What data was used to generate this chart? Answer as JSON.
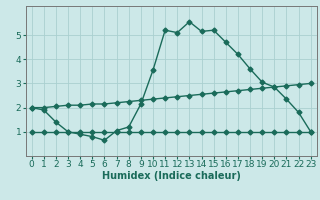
{
  "xlabel": "Humidex (Indice chaleur)",
  "background_color": "#cce8e8",
  "grid_color": "#aad0d0",
  "line_color": "#1a6b5a",
  "xlim": [
    -0.5,
    23.5
  ],
  "ylim": [
    0,
    6.2
  ],
  "xticks": [
    0,
    1,
    2,
    3,
    4,
    5,
    6,
    7,
    8,
    9,
    10,
    11,
    12,
    13,
    14,
    15,
    16,
    17,
    18,
    19,
    20,
    21,
    22,
    23
  ],
  "yticks": [
    1,
    2,
    3,
    4,
    5
  ],
  "series1_x": [
    0,
    1,
    2,
    3,
    4,
    5,
    6,
    7,
    8,
    9,
    10,
    11,
    12,
    13,
    14,
    15,
    16,
    17,
    18,
    19,
    20,
    21,
    22,
    23
  ],
  "series1_y": [
    2.0,
    1.9,
    1.4,
    1.0,
    0.9,
    0.8,
    0.65,
    1.05,
    1.2,
    2.15,
    3.55,
    5.2,
    5.1,
    5.55,
    5.15,
    5.2,
    4.7,
    4.2,
    3.6,
    3.05,
    2.85,
    2.35,
    1.8,
    1.0
  ],
  "series2_x": [
    0,
    1,
    2,
    3,
    4,
    5,
    6,
    7,
    8,
    9,
    10,
    11,
    12,
    13,
    14,
    15,
    16,
    17,
    18,
    19,
    20,
    21,
    22,
    23
  ],
  "series2_y": [
    2.0,
    2.0,
    2.05,
    2.1,
    2.1,
    2.15,
    2.15,
    2.2,
    2.25,
    2.3,
    2.35,
    2.4,
    2.45,
    2.5,
    2.55,
    2.6,
    2.65,
    2.7,
    2.75,
    2.8,
    2.85,
    2.9,
    2.95,
    3.0
  ],
  "series3_x": [
    0,
    1,
    2,
    3,
    4,
    5,
    6,
    7,
    8,
    9,
    10,
    11,
    12,
    13,
    14,
    15,
    16,
    17,
    18,
    19,
    20,
    21,
    22,
    23
  ],
  "series3_y": [
    1.0,
    1.0,
    1.0,
    1.0,
    1.0,
    1.0,
    1.0,
    1.0,
    1.0,
    1.0,
    1.0,
    1.0,
    1.0,
    1.0,
    1.0,
    1.0,
    1.0,
    1.0,
    1.0,
    1.0,
    1.0,
    1.0,
    1.0,
    1.0
  ],
  "marker_size": 2.5,
  "line_width": 1.0,
  "font_size_label": 7,
  "font_size_tick": 6.5
}
